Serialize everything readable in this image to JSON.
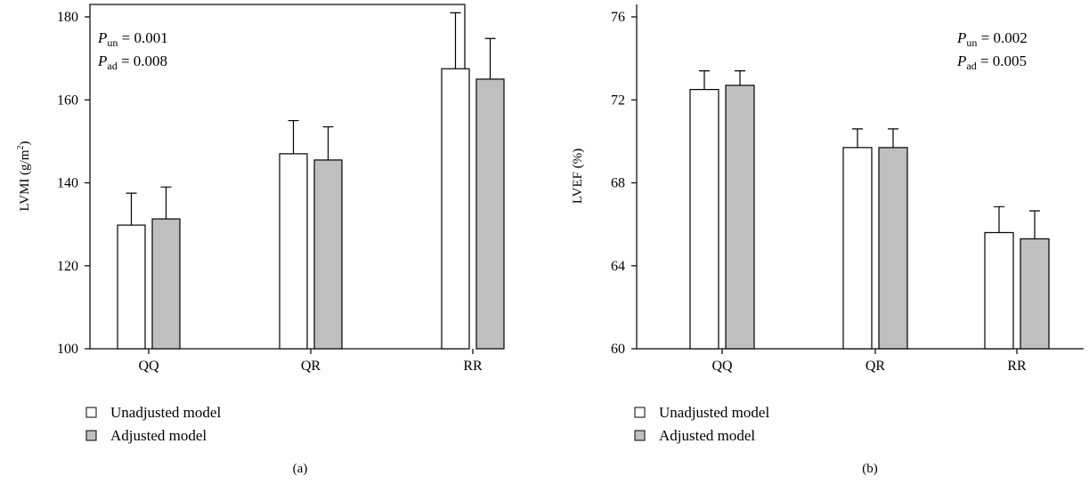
{
  "legend": {
    "unadjusted": "Unadjusted model",
    "adjusted": "Adjusted model"
  },
  "colors": {
    "unadjusted_fill": "#ffffff",
    "adjusted_fill": "#bfbfbf",
    "stroke": "#000000"
  },
  "chart_data": [
    {
      "type": "bar",
      "panel_label": "(a)",
      "ylabel_main": "LVMI (g/m",
      "ylabel_sup": "2",
      "ylabel_close": ")",
      "categories": [
        "QQ",
        "QR",
        "RR"
      ],
      "ylim": [
        100,
        180
      ],
      "yticks": [
        100,
        120,
        140,
        160,
        180
      ],
      "error_bars": "upper",
      "series": [
        {
          "name": "Unadjusted model",
          "values": [
            129.8,
            147.0,
            167.5
          ],
          "errors": [
            7.7,
            8.0,
            13.5
          ]
        },
        {
          "name": "Adjusted model",
          "values": [
            131.3,
            145.5,
            165.0
          ],
          "errors": [
            7.7,
            8.0,
            9.8
          ]
        }
      ],
      "annotations": {
        "p_un_main": "P",
        "p_un_sub": "un",
        "p_un_value": " = 0.001",
        "p_ad_main": "P",
        "p_ad_sub": "ad",
        "p_ad_value": " = 0.008",
        "placement": "top-left"
      }
    },
    {
      "type": "bar",
      "panel_label": "(b)",
      "ylabel_main": "LVEF (%)",
      "ylabel_sup": "",
      "ylabel_close": "",
      "categories": [
        "QQ",
        "QR",
        "RR"
      ],
      "ylim": [
        60,
        76
      ],
      "yticks": [
        60,
        64,
        68,
        72,
        76
      ],
      "error_bars": "upper",
      "series": [
        {
          "name": "Unadjusted model",
          "values": [
            72.5,
            69.7,
            65.6
          ],
          "errors": [
            0.9,
            0.9,
            1.25
          ]
        },
        {
          "name": "Adjusted model",
          "values": [
            72.7,
            69.7,
            65.3
          ],
          "errors": [
            0.7,
            0.9,
            1.35
          ]
        }
      ],
      "annotations": {
        "p_un_main": "P",
        "p_un_sub": "un",
        "p_un_value": " = 0.002",
        "p_ad_main": "P",
        "p_ad_sub": "ad",
        "p_ad_value": " = 0.005",
        "placement": "top-right"
      }
    }
  ]
}
